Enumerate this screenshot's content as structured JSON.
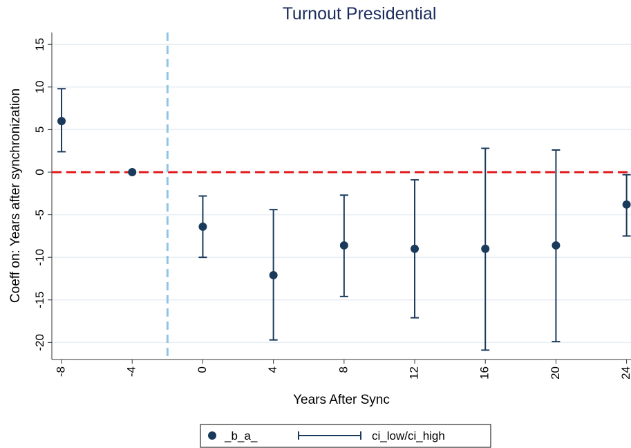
{
  "chart_data": {
    "type": "errorbar",
    "title": "Turnout Presidential",
    "x_label": "Years After Sync",
    "y_label": "Coeff on: Years after synchronization",
    "x": [
      -8,
      -4,
      0,
      4,
      8,
      12,
      16,
      20,
      24
    ],
    "series": [
      {
        "name": "_b_a_",
        "color": "#1a3a5c",
        "values": [
          6.0,
          0,
          -6.4,
          -12.1,
          -8.6,
          -9.0,
          -9.0,
          -8.6,
          -3.8
        ]
      },
      {
        "name": "ci_low/ci_high",
        "color": "#1a3a5c",
        "low": [
          2.4,
          null,
          -10.0,
          -19.7,
          -14.6,
          -17.1,
          -20.9,
          -19.9,
          -7.5
        ],
        "high": [
          9.8,
          null,
          -2.8,
          -4.4,
          -2.7,
          -0.9,
          2.8,
          2.6,
          -0.3
        ]
      }
    ],
    "xlim": [
      -8.55,
      24.25
    ],
    "ylim": [
      -22.0,
      16.4
    ],
    "xticks": [
      -8,
      -4,
      0,
      4,
      8,
      12,
      16,
      20,
      24
    ],
    "yticks": [
      -20,
      -15,
      -10,
      -5,
      0,
      5,
      10,
      15
    ],
    "grid": true,
    "hline": {
      "value": 0,
      "color": "#e31a1c"
    },
    "vline": {
      "value": -2,
      "color": "#8ec5e6"
    },
    "legend": "bottom"
  }
}
